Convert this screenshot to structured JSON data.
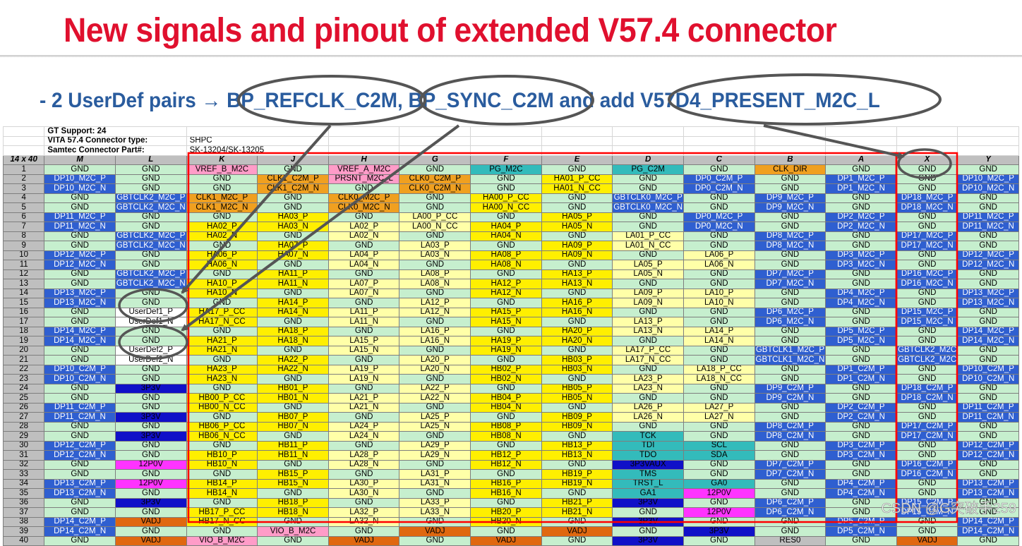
{
  "title": "New signals and pinout of extended V57.4 connector",
  "subtitle": "- 2 UserDef pairs → BP_REFCLK_C2M, BP_SYNC_C2M and add V57D4_PRESENT_M2C_L",
  "watermark": "CSDN @G突破手259",
  "info": [
    {
      "label": "GT Support: 24",
      "value": ""
    },
    {
      "label": "VITA 57.4 Connector type:",
      "value": "SHPC"
    },
    {
      "label": "Samtec Connector Part#:",
      "value": "SK-13204/SK-13205"
    }
  ],
  "grid_label": "14 x 40",
  "columns": [
    "M",
    "L",
    "K",
    "J",
    "H",
    "G",
    "F",
    "E",
    "D",
    "C",
    "B",
    "A",
    "X",
    "Y"
  ],
  "colors": {
    "green": "#c6efce",
    "gray": "#bfbfbf",
    "blue": "#2f5fd0",
    "yellow": "#ffef00",
    "lightyellow": "#ffffa8",
    "orange": "#f0a020",
    "pink": "#ff9cc8",
    "teal": "#33bbbb",
    "magenta": "#ff33ff",
    "darkblue": "#1010c8",
    "darkorange": "#e06810",
    "red": "#ff0000",
    "ellipse": "#555555"
  },
  "rows": [
    {
      "num": "1",
      "cells": [
        "GND",
        "GND",
        "VREF_B_M2C",
        "GND",
        "VREF_A_M2C",
        "GND",
        "PG_M2C",
        "GND",
        "PG_C2M",
        "GND",
        "CLK_DIR",
        "GND",
        "GND",
        "GND"
      ]
    },
    {
      "num": "2",
      "cells": [
        "DP10_M2C_P",
        "GND",
        "GND",
        "CLK1_C2M_P",
        "PRSNT_M2C_L",
        "CLK0_C2M_P",
        "GND",
        "HA01_P_CC",
        "GND",
        "DP0_C2M_P",
        "GND",
        "DP1_M2C_P",
        "GND",
        "DP10_M2C_P"
      ]
    },
    {
      "num": "3",
      "cells": [
        "DP10_M2C_N",
        "GND",
        "GND",
        "CLK1_C2M_N",
        "GND",
        "CLK0_C2M_N",
        "GND",
        "HA01_N_CC",
        "GND",
        "DP0_C2M_N",
        "GND",
        "DP1_M2C_N",
        "GND",
        "DP10_M2C_N"
      ]
    },
    {
      "num": "4",
      "cells": [
        "GND",
        "GBTCLK2_M2C_P",
        "CLK1_M2C_P",
        "GND",
        "CLK0_M2C_P",
        "GND",
        "HA00_P_CC",
        "GND",
        "GBTCLK0_M2C_P",
        "GND",
        "DP9_M2C_P",
        "GND",
        "DP18_M2C_P",
        "GND"
      ]
    },
    {
      "num": "5",
      "cells": [
        "GND",
        "GBTCLK2_M2C_N",
        "CLK1_M2C_N",
        "GND",
        "CLK0_M2C_N",
        "GND",
        "HA00_N_CC",
        "GND",
        "GBTCLK0_M2C_N",
        "GND",
        "DP9_M2C_N",
        "GND",
        "DP18_M2C_N",
        "GND"
      ]
    },
    {
      "num": "6",
      "cells": [
        "DP11_M2C_P",
        "GND",
        "GND",
        "HA03_P",
        "GND",
        "LA00_P_CC",
        "GND",
        "HA05_P",
        "GND",
        "DP0_M2C_P",
        "GND",
        "DP2_M2C_P",
        "GND",
        "DP11_M2C_P"
      ]
    },
    {
      "num": "7",
      "cells": [
        "DP11_M2C_N",
        "GND",
        "HA02_P",
        "HA03_N",
        "LA02_P",
        "LA00_N_CC",
        "HA04_P",
        "HA05_N",
        "GND",
        "DP0_M2C_N",
        "GND",
        "DP2_M2C_N",
        "GND",
        "DP11_M2C_N"
      ]
    },
    {
      "num": "8",
      "cells": [
        "GND",
        "GBTCLK2_M2C_P",
        "HA02_N",
        "GND",
        "LA02_N",
        "GND",
        "HA04_N",
        "GND",
        "LA01_P_CC",
        "GND",
        "DP8_M2C_P",
        "GND",
        "DP17_M2C_P",
        "GND"
      ]
    },
    {
      "num": "9",
      "cells": [
        "GND",
        "GBTCLK2_M2C_N",
        "GND",
        "HA07_P",
        "GND",
        "LA03_P",
        "GND",
        "HA09_P",
        "LA01_N_CC",
        "GND",
        "DP8_M2C_N",
        "GND",
        "DP17_M2C_N",
        "GND"
      ]
    },
    {
      "num": "10",
      "cells": [
        "DP12_M2C_P",
        "GND",
        "HA06_P",
        "HA07_N",
        "LA04_P",
        "LA03_N",
        "HA08_P",
        "HA09_N",
        "GND",
        "LA06_P",
        "GND",
        "DP3_M2C_P",
        "GND",
        "DP12_M2C_P"
      ]
    },
    {
      "num": "11",
      "cells": [
        "DP12_M2C_N",
        "GND",
        "HA06_N",
        "GND",
        "LA04_N",
        "GND",
        "HA08_N",
        "GND",
        "LA05_P",
        "LA06_N",
        "GND",
        "DP3_M2C_N",
        "GND",
        "DP12_M2C_N"
      ]
    },
    {
      "num": "12",
      "cells": [
        "GND",
        "GBTCLK2_M2C_P",
        "GND",
        "HA11_P",
        "GND",
        "LA08_P",
        "GND",
        "HA13_P",
        "LA05_N",
        "GND",
        "DP7_M2C_P",
        "GND",
        "DP16_M2C_P",
        "GND"
      ]
    },
    {
      "num": "13",
      "cells": [
        "GND",
        "GBTCLK2_M2C_N",
        "HA10_P",
        "HA11_N",
        "LA07_P",
        "LA08_N",
        "HA12_P",
        "HA13_N",
        "GND",
        "GND",
        "DP7_M2C_N",
        "GND",
        "DP16_M2C_N",
        "GND"
      ]
    },
    {
      "num": "14",
      "cells": [
        "DP13_M2C_P",
        "GND",
        "HA10_N",
        "GND",
        "LA07_N",
        "GND",
        "HA12_N",
        "GND",
        "LA09_P",
        "LA10_P",
        "GND",
        "DP4_M2C_P",
        "GND",
        "DP13_M2C_P"
      ]
    },
    {
      "num": "15",
      "cells": [
        "DP13_M2C_N",
        "GND",
        "GND",
        "HA14_P",
        "GND",
        "LA12_P",
        "GND",
        "HA16_P",
        "LA09_N",
        "LA10_N",
        "GND",
        "DP4_M2C_N",
        "GND",
        "DP13_M2C_N"
      ]
    },
    {
      "num": "16",
      "cells": [
        "GND",
        "UserDef1_P",
        "HA17_P_CC",
        "HA14_N",
        "LA11_P",
        "LA12_N",
        "HA15_P",
        "HA16_N",
        "GND",
        "GND",
        "DP6_M2C_P",
        "GND",
        "DP15_M2C_P",
        "GND"
      ]
    },
    {
      "num": "17",
      "cells": [
        "GND",
        "UserDef1_N",
        "HA17_N_CC",
        "GND",
        "LA11_N",
        "GND",
        "HA15_N",
        "GND",
        "LA13_P",
        "GND",
        "DP6_M2C_N",
        "GND",
        "DP15_M2C_N",
        "GND"
      ]
    },
    {
      "num": "18",
      "cells": [
        "DP14_M2C_P",
        "GND",
        "GND",
        "HA18_P",
        "GND",
        "LA16_P",
        "GND",
        "HA20_P",
        "LA13_N",
        "LA14_P",
        "GND",
        "DP5_M2C_P",
        "GND",
        "DP14_M2C_P"
      ]
    },
    {
      "num": "19",
      "cells": [
        "DP14_M2C_N",
        "GND",
        "HA21_P",
        "HA18_N",
        "LA15_P",
        "LA16_N",
        "HA19_P",
        "HA20_N",
        "GND",
        "LA14_N",
        "GND",
        "DP5_M2C_N",
        "GND",
        "DP14_M2C_N"
      ]
    },
    {
      "num": "20",
      "cells": [
        "GND",
        "UserDef2_P",
        "HA21_N",
        "GND",
        "LA15_N",
        "GND",
        "HA19_N",
        "GND",
        "LA17_P_CC",
        "GND",
        "GBTCLK1_M2C_P",
        "GND",
        "GBTCLK2_M2C",
        "GND"
      ]
    },
    {
      "num": "21",
      "cells": [
        "GND",
        "UserDef2_N",
        "GND",
        "HA22_P",
        "GND",
        "LA20_P",
        "GND",
        "HB03_P",
        "LA17_N_CC",
        "GND",
        "GBTCLK1_M2C_N",
        "GND",
        "GBTCLK2_M2C",
        "GND"
      ]
    },
    {
      "num": "22",
      "cells": [
        "DP10_C2M_P",
        "GND",
        "HA23_P",
        "HA22_N",
        "LA19_P",
        "LA20_N",
        "HB02_P",
        "HB03_N",
        "GND",
        "LA18_P_CC",
        "GND",
        "DP1_C2M_P",
        "GND",
        "DP10_C2M_P"
      ]
    },
    {
      "num": "23",
      "cells": [
        "DP10_C2M_N",
        "GND",
        "HA23_N",
        "GND",
        "LA19_N",
        "GND",
        "HB02_N",
        "GND",
        "LA23_P",
        "LA18_N_CC",
        "GND",
        "DP1_C2M_N",
        "GND",
        "DP10_C2M_N"
      ]
    },
    {
      "num": "24",
      "cells": [
        "GND",
        "3P3V",
        "GND",
        "HB01_P",
        "GND",
        "LA22_P",
        "GND",
        "HB05_P",
        "LA23_N",
        "GND",
        "DP9_C2M_P",
        "GND",
        "DP18_C2M_P",
        "GND"
      ]
    },
    {
      "num": "25",
      "cells": [
        "GND",
        "GND",
        "HB00_P_CC",
        "HB01_N",
        "LA21_P",
        "LA22_N",
        "HB04_P",
        "HB05_N",
        "GND",
        "GND",
        "DP9_C2M_N",
        "GND",
        "DP18_C2M_N",
        "GND"
      ]
    },
    {
      "num": "26",
      "cells": [
        "DP11_C2M_P",
        "GND",
        "HB00_N_CC",
        "GND",
        "LA21_N",
        "GND",
        "HB04_N",
        "GND",
        "LA26_P",
        "LA27_P",
        "GND",
        "DP2_C2M_P",
        "GND",
        "DP11_C2M_P"
      ]
    },
    {
      "num": "27",
      "cells": [
        "DP11_C2M_N",
        "3P3V",
        "GND",
        "HB07_P",
        "GND",
        "LA25_P",
        "GND",
        "HB09_P",
        "LA26_N",
        "LA27_N",
        "GND",
        "DP2_C2M_N",
        "GND",
        "DP11_C2M_N"
      ]
    },
    {
      "num": "28",
      "cells": [
        "GND",
        "GND",
        "HB06_P_CC",
        "HB07_N",
        "LA24_P",
        "LA25_N",
        "HB08_P",
        "HB09_N",
        "GND",
        "GND",
        "DP8_C2M_P",
        "GND",
        "DP17_C2M_P",
        "GND"
      ]
    },
    {
      "num": "29",
      "cells": [
        "GND",
        "3P3V",
        "HB06_N_CC",
        "GND",
        "LA24_N",
        "GND",
        "HB08_N",
        "GND",
        "TCK",
        "GND",
        "DP8_C2M_N",
        "GND",
        "DP17_C2M_N",
        "GND"
      ]
    },
    {
      "num": "30",
      "cells": [
        "DP12_C2M_P",
        "GND",
        "GND",
        "HB11_P",
        "GND",
        "LA29_P",
        "GND",
        "HB13_P",
        "TDI",
        "SCL",
        "GND",
        "DP3_C2M_P",
        "GND",
        "DP12_C2M_P"
      ]
    },
    {
      "num": "31",
      "cells": [
        "DP12_C2M_N",
        "GND",
        "HB10_P",
        "HB11_N",
        "LA28_P",
        "LA29_N",
        "HB12_P",
        "HB13_N",
        "TDO",
        "SDA",
        "GND",
        "DP3_C2M_N",
        "GND",
        "DP12_C2M_N"
      ]
    },
    {
      "num": "32",
      "cells": [
        "GND",
        "12P0V",
        "HB10_N",
        "GND",
        "LA28_N",
        "GND",
        "HB12_N",
        "GND",
        "3P3VAUX",
        "GND",
        "DP7_C2M_P",
        "GND",
        "DP16_C2M_P",
        "GND"
      ]
    },
    {
      "num": "33",
      "cells": [
        "GND",
        "GND",
        "GND",
        "HB15_P",
        "GND",
        "LA31_P",
        "GND",
        "HB19_P",
        "TMS",
        "GND",
        "DP7_C2M_N",
        "GND",
        "DP16_C2M_N",
        "GND"
      ]
    },
    {
      "num": "34",
      "cells": [
        "DP13_C2M_P",
        "12P0V",
        "HB14_P",
        "HB15_N",
        "LA30_P",
        "LA31_N",
        "HB16_P",
        "HB19_N",
        "TRST_L",
        "GA0",
        "GND",
        "DP4_C2M_P",
        "GND",
        "DP13_C2M_P"
      ]
    },
    {
      "num": "35",
      "cells": [
        "DP13_C2M_N",
        "GND",
        "HB14_N",
        "GND",
        "LA30_N",
        "GND",
        "HB16_N",
        "GND",
        "GA1",
        "12P0V",
        "GND",
        "DP4_C2M_N",
        "GND",
        "DP13_C2M_N"
      ]
    },
    {
      "num": "36",
      "cells": [
        "GND",
        "3P3V",
        "GND",
        "HB18_P",
        "GND",
        "LA33_P",
        "GND",
        "HB21_P",
        "3P3V",
        "GND",
        "DP6_C2M_P",
        "GND",
        "DP15_C2M_P",
        "GND"
      ]
    },
    {
      "num": "37",
      "cells": [
        "GND",
        "GND",
        "HB17_P_CC",
        "HB18_N",
        "LA32_P",
        "LA33_N",
        "HB20_P",
        "HB21_N",
        "GND",
        "12P0V",
        "DP6_C2M_N",
        "GND",
        "DP15_C2M_N",
        "GND"
      ]
    },
    {
      "num": "38",
      "cells": [
        "DP14_C2M_P",
        "VADJ",
        "HB17_N_CC",
        "GND",
        "LA32_N",
        "GND",
        "HB20_N",
        "GND",
        "3P3V",
        "GND",
        "GND",
        "DP5_C2M_P",
        "GND",
        "DP14_C2M_P"
      ]
    },
    {
      "num": "39",
      "cells": [
        "DP14_C2M_N",
        "GND",
        "GND",
        "VIO_B_M2C",
        "GND",
        "VADJ",
        "GND",
        "VADJ",
        "GND",
        "3P3V",
        "GND",
        "DP5_C2M_N",
        "GND",
        "DP14_C2M_N"
      ]
    },
    {
      "num": "40",
      "cells": [
        "GND",
        "VADJ",
        "VIO_B_M2C",
        "GND",
        "VADJ",
        "GND",
        "VADJ",
        "GND",
        "3P3V",
        "GND",
        "RES0",
        "GND",
        "VADJ",
        "GND"
      ]
    }
  ]
}
